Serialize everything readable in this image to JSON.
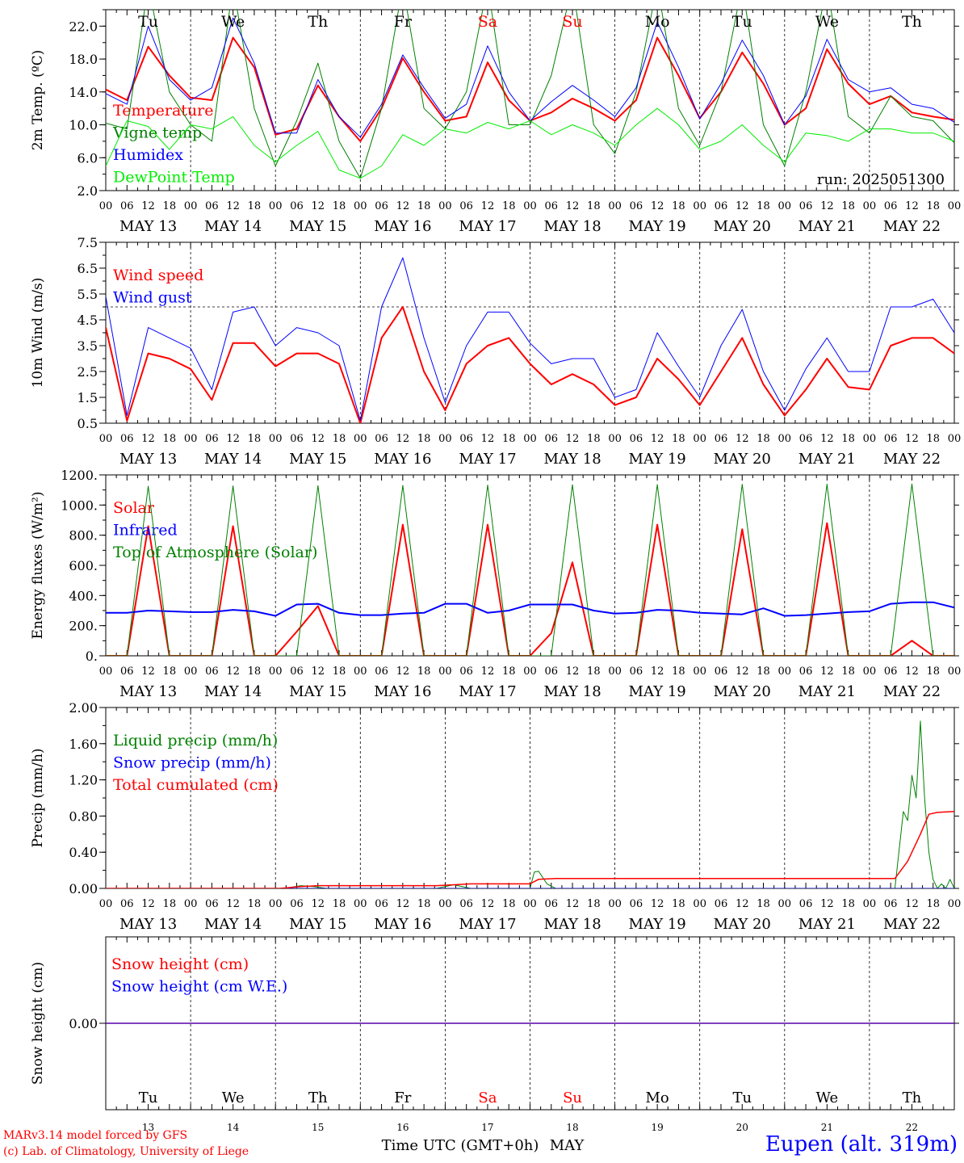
{
  "run_label": "run: 2025051300",
  "xaxis": {
    "title": "Time UTC (GMT+0h)",
    "month": "MAY",
    "hour_ticks": [
      "00",
      "06",
      "12",
      "18"
    ],
    "last_tick": "00",
    "days": [
      "MAY 13",
      "MAY 14",
      "MAY 15",
      "MAY 16",
      "MAY 17",
      "MAY 18",
      "MAY 19",
      "MAY 20",
      "MAY 21",
      "MAY 22"
    ],
    "day_numbers": [
      "13",
      "14",
      "15",
      "16",
      "17",
      "18",
      "19",
      "20",
      "21",
      "22"
    ],
    "weekdays": [
      "Tu",
      "We",
      "Th",
      "Fr",
      "Sa",
      "Su",
      "Mo",
      "Tu",
      "We",
      "Th"
    ],
    "weekend_color": "#ff0000",
    "weekday_color": "#000000"
  },
  "footer": {
    "model_credit": "MARv3.14 model forced by GFS",
    "lab_credit": "(c) Lab. of Climatology, University of Liege",
    "station": "Eupen (alt. 319m)",
    "credit_color": "#ff0000",
    "station_color": "#0000ff"
  },
  "chart_data": [
    {
      "type": "line",
      "ylabel": "2m Temp. (ºC)",
      "ylim": [
        2.0,
        24.0
      ],
      "yticks": [
        "2.0",
        "6.0",
        "10.0",
        "14.0",
        "18.0",
        "22.0"
      ],
      "ytick_values": [
        2,
        6,
        10,
        14,
        18,
        22
      ],
      "x_days": [
        0,
        0.25,
        0.5,
        0.75,
        1,
        1.25,
        1.5,
        1.75,
        2,
        2.25,
        2.5,
        2.75,
        3,
        3.25,
        3.5,
        3.75,
        4,
        4.25,
        4.5,
        4.75,
        5,
        5.25,
        5.5,
        5.75,
        6,
        6.25,
        6.5,
        6.75,
        7,
        7.25,
        7.5,
        7.75,
        8,
        8.25,
        8.5,
        8.75,
        9,
        9.25,
        9.5,
        9.75,
        10
      ],
      "series": [
        {
          "name": "Temperature",
          "color": "#ff0000",
          "width": 2,
          "values": [
            14.3,
            13.0,
            19.5,
            16.0,
            13.3,
            13.0,
            20.6,
            17.0,
            8.8,
            9.5,
            14.8,
            11.0,
            8.0,
            12.0,
            18.1,
            14.0,
            10.5,
            11.0,
            17.6,
            13.0,
            10.5,
            11.5,
            13.2,
            12.0,
            10.5,
            13.0,
            20.6,
            16.0,
            10.8,
            14.0,
            18.8,
            15.0,
            10.0,
            12.0,
            19.2,
            15.0,
            12.5,
            13.5,
            11.5,
            11.0,
            10.6
          ]
        },
        {
          "name": "Vigne temp",
          "color": "#008000",
          "width": 1,
          "values": [
            10.2,
            9.5,
            27.0,
            14.0,
            10.0,
            8.0,
            27.0,
            12.0,
            5.0,
            10.5,
            17.5,
            8.0,
            3.5,
            12.0,
            27.0,
            12.0,
            9.5,
            14.0,
            27.0,
            10.0,
            10.0,
            16.0,
            27.0,
            10.0,
            6.5,
            14.0,
            27.0,
            12.0,
            7.5,
            14.0,
            27.0,
            10.0,
            5.0,
            14.0,
            27.0,
            11.0,
            9.0,
            13.5,
            11.0,
            10.5,
            7.8
          ]
        },
        {
          "name": "Humidex",
          "color": "#0000ff",
          "width": 1,
          "values": [
            13.8,
            12.5,
            22.0,
            15.5,
            13.0,
            14.5,
            23.0,
            17.5,
            9.0,
            9.0,
            15.5,
            11.0,
            8.5,
            12.5,
            18.5,
            14.5,
            10.8,
            12.5,
            19.6,
            14.0,
            10.5,
            12.8,
            14.8,
            13.0,
            11.0,
            14.5,
            22.5,
            17.0,
            10.7,
            15.0,
            20.3,
            16.0,
            10.0,
            13.5,
            20.4,
            15.5,
            14.0,
            14.5,
            12.5,
            12.0,
            10.3
          ]
        },
        {
          "name": "DewPoint Temp",
          "color": "#00ee00",
          "width": 1,
          "values": [
            5.0,
            10.5,
            9.8,
            7.0,
            10.0,
            9.5,
            11.0,
            7.5,
            5.5,
            7.5,
            9.2,
            4.5,
            3.5,
            5.0,
            8.8,
            7.5,
            9.5,
            9.0,
            10.3,
            9.5,
            10.5,
            8.8,
            10.0,
            9.0,
            7.5,
            10.0,
            12.0,
            10.0,
            7.0,
            8.0,
            10.0,
            7.5,
            5.5,
            9.0,
            8.7,
            8.0,
            9.5,
            9.5,
            9.0,
            9.0,
            8.0
          ]
        }
      ]
    },
    {
      "type": "line",
      "ylabel": "10m Wind (m/s)",
      "ylim": [
        0.5,
        7.5
      ],
      "yticks": [
        "0.5",
        "1.5",
        "2.5",
        "3.5",
        "4.5",
        "5.5",
        "6.5",
        "7.5"
      ],
      "ytick_values": [
        0.5,
        1.5,
        2.5,
        3.5,
        4.5,
        5.5,
        6.5,
        7.5
      ],
      "reference_line": 5.0,
      "x_days": [
        0,
        0.25,
        0.5,
        0.75,
        1,
        1.25,
        1.5,
        1.75,
        2,
        2.25,
        2.5,
        2.75,
        3,
        3.25,
        3.5,
        3.75,
        4,
        4.25,
        4.5,
        4.75,
        5,
        5.25,
        5.5,
        5.75,
        6,
        6.25,
        6.5,
        6.75,
        7,
        7.25,
        7.5,
        7.75,
        8,
        8.25,
        8.5,
        8.75,
        9,
        9.25,
        9.5,
        9.75,
        10
      ],
      "series": [
        {
          "name": "Wind speed",
          "color": "#ff0000",
          "width": 2,
          "values": [
            4.2,
            0.6,
            3.2,
            3.0,
            2.6,
            1.4,
            3.6,
            3.6,
            2.7,
            3.2,
            3.2,
            2.8,
            0.5,
            3.8,
            5.0,
            2.5,
            1.0,
            2.8,
            3.5,
            3.8,
            2.8,
            2.0,
            2.4,
            2.0,
            1.2,
            1.5,
            3.0,
            2.2,
            1.2,
            2.5,
            3.8,
            2.0,
            0.8,
            1.8,
            3.0,
            1.9,
            1.8,
            3.5,
            3.8,
            3.8,
            3.2
          ]
        },
        {
          "name": "Wind gust",
          "color": "#0000ff",
          "width": 1,
          "values": [
            5.4,
            0.8,
            4.2,
            3.8,
            3.4,
            1.8,
            4.8,
            5.0,
            3.5,
            4.2,
            4.0,
            3.5,
            0.6,
            5.0,
            6.9,
            3.8,
            1.3,
            3.5,
            4.8,
            4.8,
            3.6,
            2.8,
            3.0,
            3.0,
            1.5,
            1.8,
            4.0,
            2.7,
            1.5,
            3.5,
            4.9,
            2.5,
            1.0,
            2.6,
            3.8,
            2.5,
            2.5,
            5.0,
            5.0,
            5.3,
            4.0
          ]
        }
      ]
    },
    {
      "type": "line",
      "ylabel": "Energy fluxes (W/m²)",
      "ylim": [
        0,
        1200
      ],
      "yticks": [
        "0.",
        "200.",
        "400.",
        "600.",
        "800.",
        "1000.",
        "1200."
      ],
      "ytick_values": [
        0,
        200,
        400,
        600,
        800,
        1000,
        1200
      ],
      "x_days": [
        0,
        0.25,
        0.5,
        0.75,
        1,
        1.25,
        1.5,
        1.75,
        2,
        2.25,
        2.5,
        2.75,
        3,
        3.25,
        3.5,
        3.75,
        4,
        4.25,
        4.5,
        4.75,
        5,
        5.25,
        5.5,
        5.75,
        6,
        6.25,
        6.5,
        6.75,
        7,
        7.25,
        7.5,
        7.75,
        8,
        8.25,
        8.5,
        8.75,
        9,
        9.25,
        9.5,
        9.75,
        10
      ],
      "series": [
        {
          "name": "Solar",
          "color": "#ff0000",
          "width": 2,
          "values": [
            0,
            0,
            860,
            0,
            0,
            0,
            860,
            0,
            0,
            160,
            330,
            0,
            0,
            0,
            870,
            0,
            0,
            0,
            870,
            0,
            0,
            150,
            620,
            0,
            0,
            0,
            870,
            0,
            0,
            0,
            840,
            0,
            0,
            0,
            880,
            0,
            0,
            0,
            100,
            0,
            0
          ]
        },
        {
          "name": "Infrared",
          "color": "#0000ff",
          "width": 2,
          "values": [
            285,
            285,
            300,
            295,
            290,
            290,
            305,
            295,
            265,
            340,
            345,
            285,
            270,
            270,
            280,
            285,
            345,
            345,
            285,
            300,
            340,
            340,
            340,
            300,
            280,
            285,
            305,
            300,
            285,
            280,
            275,
            315,
            265,
            270,
            280,
            290,
            295,
            345,
            355,
            355,
            320
          ]
        },
        {
          "name": "Top of Atmosphere (Solar)",
          "color": "#008000",
          "width": 1,
          "values": [
            0,
            0,
            1125,
            0,
            0,
            0,
            1127,
            0,
            0,
            0,
            1129,
            0,
            0,
            0,
            1131,
            0,
            0,
            0,
            1133,
            0,
            0,
            0,
            1135,
            0,
            0,
            0,
            1136,
            0,
            0,
            0,
            1138,
            0,
            0,
            0,
            1139,
            0,
            0,
            0,
            1140,
            0,
            0
          ]
        }
      ]
    },
    {
      "type": "line",
      "ylabel": "Precip (mm/h)",
      "ylim": [
        0,
        2.0
      ],
      "yticks": [
        "0.00",
        "0.40",
        "0.80",
        "1.20",
        "1.60",
        "2.00"
      ],
      "ytick_values": [
        0,
        0.4,
        0.8,
        1.2,
        1.6,
        2.0
      ],
      "series": [
        {
          "name": "Liquid precip (mm/h)",
          "color": "#008000",
          "width": 1,
          "x": [
            0,
            2.1,
            2.3,
            2.45,
            2.6,
            3.0,
            3.9,
            4.1,
            4.3,
            5.0,
            5.05,
            5.1,
            5.2,
            5.3,
            9.3,
            9.4,
            9.45,
            9.5,
            9.55,
            9.6,
            9.65,
            9.7,
            9.75,
            9.8,
            9.85,
            9.9,
            9.95,
            10
          ],
          "values": [
            0,
            0,
            0.03,
            0.02,
            0,
            0,
            0,
            0.04,
            0,
            0,
            0.18,
            0.19,
            0.05,
            0,
            0,
            0.85,
            0.75,
            1.25,
            1.0,
            1.85,
            1.0,
            0.4,
            0.1,
            0,
            0.05,
            0,
            0.1,
            0
          ]
        },
        {
          "name": "Snow precip (mm/h)",
          "color": "#0000ff",
          "width": 1,
          "x": [
            0,
            10
          ],
          "values": [
            0,
            0
          ]
        },
        {
          "name": "Total cumulated (cm)",
          "color": "#ff0000",
          "width": 1.5,
          "x": [
            0,
            2.05,
            2.3,
            2.5,
            3.9,
            4.1,
            4.3,
            5.0,
            5.1,
            5.3,
            9.3,
            9.45,
            9.6,
            9.7,
            9.8,
            10
          ],
          "values": [
            0,
            0,
            0.02,
            0.03,
            0.03,
            0.04,
            0.05,
            0.05,
            0.1,
            0.11,
            0.11,
            0.3,
            0.6,
            0.82,
            0.84,
            0.85
          ]
        }
      ]
    },
    {
      "type": "line",
      "ylabel": "Snow height (cm)",
      "ylim": [
        -1,
        1
      ],
      "yticks": [
        "0.00"
      ],
      "ytick_values": [
        0
      ],
      "series": [
        {
          "name": "Snow height (cm)",
          "color": "#ff0000",
          "width": 1.5,
          "x": [
            0,
            10
          ],
          "values": [
            0,
            0
          ]
        },
        {
          "name": "Snow height (cm W.E.)",
          "color": "#0000ff",
          "width": 1,
          "x": [
            0,
            10
          ],
          "values": [
            0,
            0
          ]
        }
      ]
    }
  ]
}
